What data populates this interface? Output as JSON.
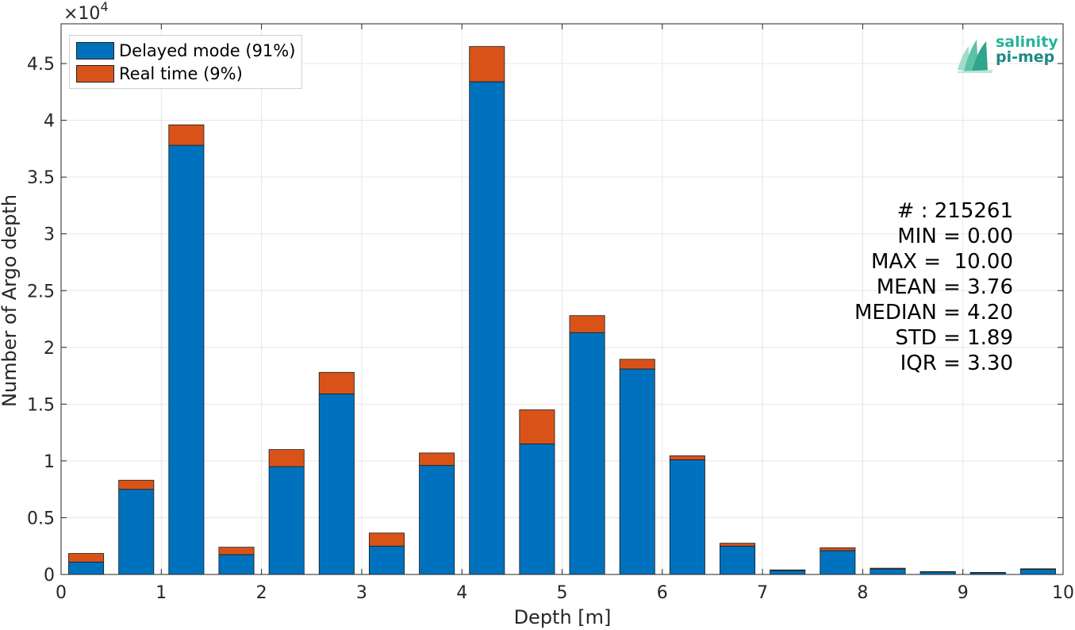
{
  "chart_data": {
    "type": "bar",
    "stacked": true,
    "xlabel": "Depth [m]",
    "ylabel": "Number of Argo depth",
    "exponent_label": "×10",
    "exponent_power": "4",
    "xlim": [
      0,
      10
    ],
    "ylim": [
      0,
      48500
    ],
    "grid": true,
    "legend_position": "top-left",
    "x_ticks": [
      "0",
      "1",
      "2",
      "3",
      "4",
      "5",
      "6",
      "7",
      "8",
      "9",
      "10"
    ],
    "y_ticks": [
      "0",
      "0.5",
      "1",
      "1.5",
      "2",
      "2.5",
      "3",
      "3.5",
      "4",
      "4.5"
    ],
    "x": [
      0.25,
      0.75,
      1.25,
      1.75,
      2.25,
      2.75,
      3.25,
      3.75,
      4.25,
      4.75,
      5.25,
      5.75,
      6.25,
      6.75,
      7.25,
      7.75,
      8.25,
      8.75,
      9.25,
      9.75
    ],
    "series": [
      {
        "name": "Delayed mode (91%)",
        "color": "#0072bd",
        "values": [
          1100,
          7500,
          37800,
          1750,
          9500,
          15900,
          2500,
          9600,
          43400,
          11500,
          21300,
          18100,
          10100,
          2500,
          350,
          2100,
          480,
          220,
          150,
          450
        ]
      },
      {
        "name": "Real time (9%)",
        "color": "#d95319",
        "values": [
          750,
          800,
          1800,
          650,
          1500,
          1900,
          1150,
          1100,
          3100,
          3000,
          1500,
          850,
          350,
          250,
          50,
          250,
          70,
          30,
          30,
          50
        ]
      }
    ]
  },
  "stats": [
    "# : 215261",
    "MIN = 0.00",
    "MAX =  10.00",
    "MEAN = 3.76",
    "MEDIAN = 4.20",
    "STD = 1.89",
    "IQR = 3.30"
  ],
  "logo": {
    "line1": "salinity",
    "line2": "pi-mep",
    "color1": "#26b39a",
    "color2": "#1d8a86"
  }
}
